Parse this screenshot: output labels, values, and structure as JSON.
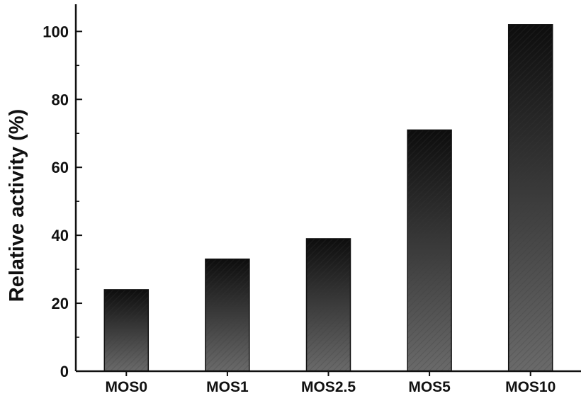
{
  "chart_data": {
    "type": "bar",
    "title": "",
    "xlabel": "",
    "ylabel": "Relative activity (%)",
    "categories": [
      "MOS0",
      "MOS1",
      "MOS2.5",
      "MOS5",
      "MOS10"
    ],
    "values": [
      24,
      33,
      39,
      71,
      102
    ],
    "ylim": [
      0,
      108
    ],
    "yticks": [
      0,
      20,
      40,
      60,
      80,
      100
    ],
    "grid": false,
    "legend": "none",
    "colors": {
      "bar_top": "#0d0d0d",
      "bar_bottom": "#6a6a6a",
      "hatch": "#3a3a3a",
      "axis": "#111111"
    }
  }
}
